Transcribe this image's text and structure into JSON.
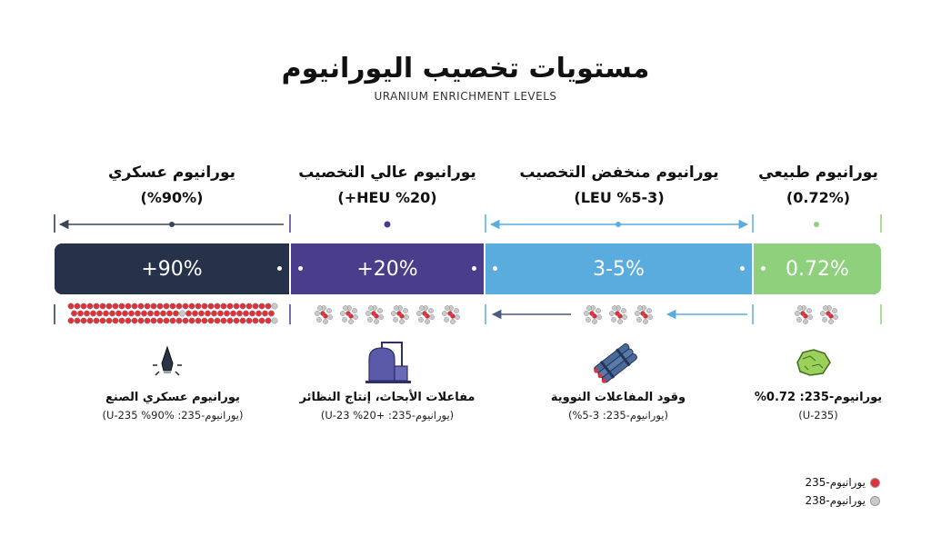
{
  "title": "مستويات تخصيب اليورانيوم",
  "subtitle": "URANIUM ENRICHMENT LEVELS",
  "colors": {
    "natural": "#8fd07c",
    "leu": "#5aacde",
    "heu": "#4a3d8c",
    "military": "#26324a",
    "u235": "#e0313a",
    "u238": "#c9c9c9"
  },
  "levels": [
    {
      "name": "يورانيوم طبيعي",
      "pct_label": "(0.72%)",
      "bar_label": "0.72%",
      "enrichment_percent": 0.72,
      "use_title": "يورانيوم-235: 0.72%",
      "use_sub": "(U-235)",
      "icon": "ore-rock-icon"
    },
    {
      "name": "يورانيوم منخفض التخصيب",
      "pct_label": "(LEU %5-3)",
      "bar_label": "3-5%",
      "enrichment_percent": [
        3,
        5
      ],
      "use_title": "وقود المفاعلات النووية",
      "use_sub": "(يورانيوم-235: 3-5%)",
      "icon": "fuel-rods-icon"
    },
    {
      "name": "يورانيوم عالي التخصيب",
      "pct_label": "(HEU %20+)",
      "bar_label": "20%+",
      "enrichment_percent": 20,
      "use_title": "مفاعلات الأبحاث، إنتاج النظائر",
      "use_sub": "(يورانيوم-235: +20% U-23)",
      "icon": "research-reactor-icon"
    },
    {
      "name": "يورانيوم عسكري",
      "pct_label": "(%90%)",
      "bar_label": "90%+",
      "enrichment_percent": 90,
      "use_title": "يورانيوم عسكري الصنع",
      "use_sub": "(يورانيوم-235: U-235 %90%)",
      "icon": "warhead-icon"
    }
  ],
  "legend": [
    {
      "label": "يورانيوم-235",
      "color": "#e0313a"
    },
    {
      "label": "يورانيوم-238",
      "color": "#c9c9c9"
    }
  ]
}
